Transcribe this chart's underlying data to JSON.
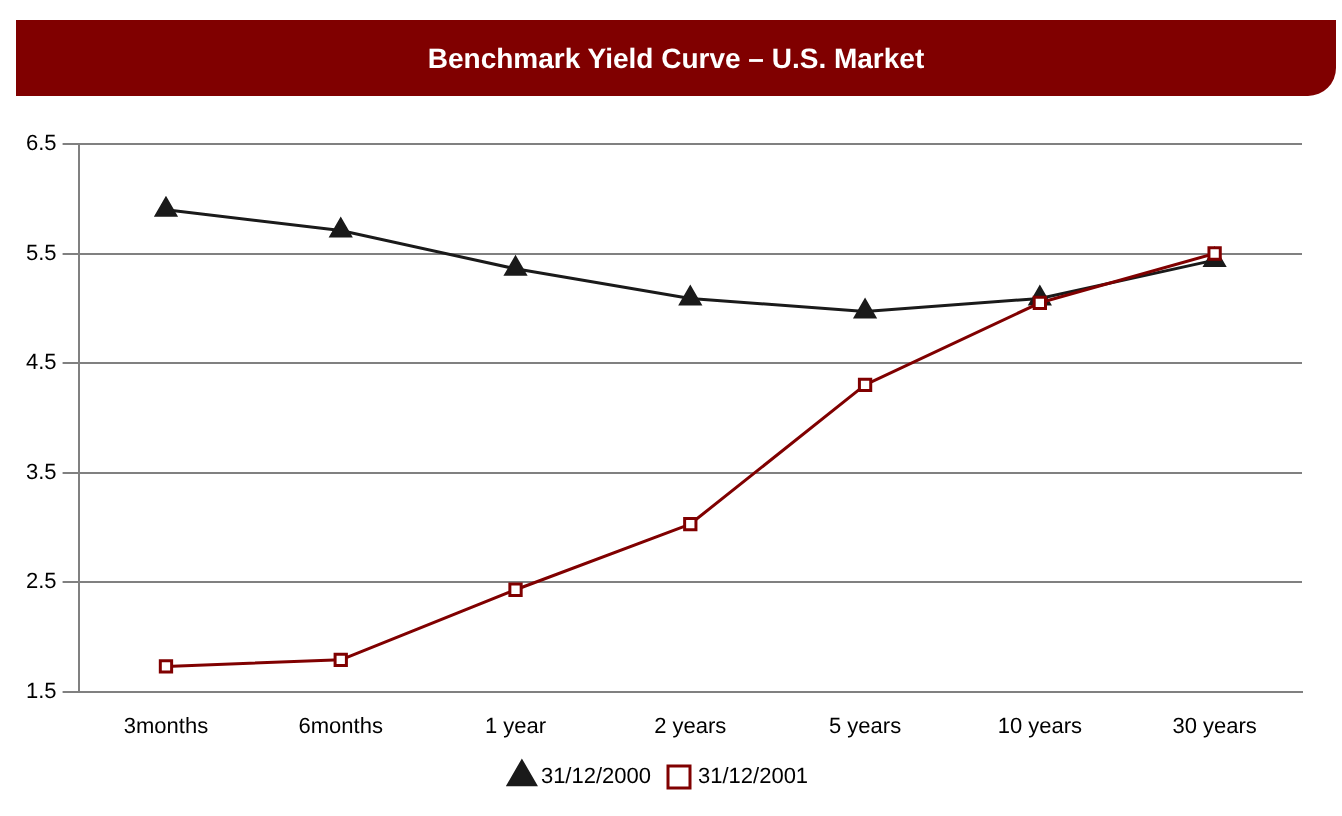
{
  "chart_data": {
    "type": "line",
    "title": "Benchmark Yield Curve – U.S. Market",
    "categories": [
      "3months",
      "6months",
      "1 year",
      "2 years",
      "5 years",
      "10 years",
      "30 years"
    ],
    "series": [
      {
        "name": "31/12/2000",
        "color": "#1a1a1a",
        "marker": "triangle",
        "values": [
          5.9,
          5.71,
          5.36,
          5.09,
          4.97,
          5.09,
          5.44
        ]
      },
      {
        "name": "31/12/2001",
        "color": "#800000",
        "marker": "square",
        "values": [
          1.73,
          1.79,
          2.43,
          3.03,
          4.3,
          5.05,
          5.5
        ]
      }
    ],
    "ylim": [
      1.5,
      6.5
    ],
    "yticks": [
      1.5,
      2.5,
      3.5,
      4.5,
      5.5,
      6.5
    ],
    "grid": "y",
    "legend": "bottom",
    "line_style": "solid"
  }
}
